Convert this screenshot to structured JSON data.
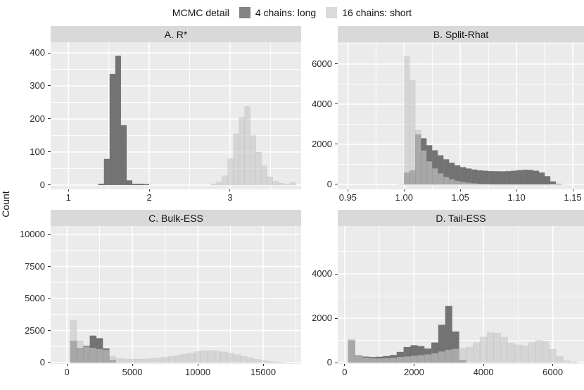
{
  "legend": {
    "title": "MCMC detail",
    "items": [
      {
        "label": "4 chains: long",
        "color": "#848484"
      },
      {
        "label": "16 chains: short",
        "color": "#DADADA"
      }
    ],
    "position": "top"
  },
  "axis": {
    "y_label": "Count"
  },
  "colors": {
    "panel_bg": "#EBEBEB",
    "grid": "#FFFFFF",
    "strip_bg": "#D9D9D9",
    "dark_fill": "#737373",
    "light_fill": "#C8C8C8",
    "light_opacity": 0.63,
    "tick_mark": "#333333",
    "tick_text": "#2b2b2b"
  },
  "chart_data": [
    {
      "id": "A",
      "type": "bar",
      "subtype": "overlaid-histograms",
      "title": "A. R*",
      "xlabel": "",
      "ylabel": "Count",
      "grid": true,
      "x_range": [
        0.78,
        3.88
      ],
      "y_range": [
        -13,
        432
      ],
      "x_tick_values": [
        1,
        2,
        3
      ],
      "x_tick_labels": [
        "1",
        "2",
        "3"
      ],
      "x_minor": [
        1.5,
        2.5,
        3.5
      ],
      "y_tick_values": [
        0,
        100,
        200,
        300,
        400
      ],
      "y_tick_labels": [
        "0",
        "100",
        "200",
        "300",
        "400"
      ],
      "y_minor": [
        50,
        150,
        250,
        350
      ],
      "series": [
        {
          "name": "4 chains: long",
          "key": "dark",
          "bin_start": 1.37,
          "bin_width": 0.07,
          "counts": [
            4,
            79,
            336,
            391,
            181,
            14,
            4,
            4,
            3
          ]
        },
        {
          "name": "16 chains: short",
          "key": "light",
          "bin_start": 2.76,
          "bin_width": 0.07,
          "counts": [
            4,
            10,
            28,
            80,
            155,
            205,
            238,
            150,
            100,
            58,
            25,
            12,
            6,
            3,
            8
          ]
        }
      ]
    },
    {
      "id": "B",
      "type": "bar",
      "subtype": "overlaid-histograms",
      "title": "B. Split-Rhat",
      "xlabel": "",
      "ylabel": "Count",
      "grid": true,
      "x_range": [
        0.941,
        1.16
      ],
      "y_range": [
        -246,
        7087
      ],
      "x_tick_values": [
        0.95,
        1.0,
        1.05,
        1.1,
        1.15
      ],
      "x_tick_labels": [
        "0.95",
        "1.00",
        "1.05",
        "1.10",
        "1.15"
      ],
      "x_minor": [
        0.975,
        1.025,
        1.075,
        1.125
      ],
      "y_tick_values": [
        0,
        2000,
        4000,
        6000
      ],
      "y_tick_labels": [
        "0",
        "2000",
        "4000",
        "6000"
      ],
      "y_minor": [
        1000,
        3000,
        5000,
        7000
      ],
      "series": [
        {
          "name": "4 chains: long",
          "key": "dark",
          "bin_start": 1.0,
          "bin_width": 0.005,
          "counts": [
            600,
            700,
            2500,
            2300,
            1950,
            1700,
            1450,
            1250,
            1080,
            950,
            860,
            790,
            740,
            700,
            680,
            660,
            655,
            650,
            660,
            680,
            710,
            730,
            720,
            680,
            590,
            410,
            150,
            30
          ]
        },
        {
          "name": "16 chains: short",
          "key": "light",
          "bin_start": 0.995,
          "bin_width": 0.005,
          "counts": [
            30,
            6400,
            5200,
            2700,
            1700,
            1150,
            800,
            550,
            380,
            260,
            180,
            130,
            90,
            60,
            40,
            28,
            18,
            12,
            8,
            6,
            4,
            3,
            2,
            2,
            1,
            1,
            1,
            30,
            20,
            8
          ]
        }
      ]
    },
    {
      "id": "C",
      "type": "bar",
      "subtype": "overlaid-histograms",
      "title": "C. Bulk-ESS",
      "xlabel": "",
      "ylabel": "Count",
      "grid": true,
      "x_range": [
        -1240,
        17900
      ],
      "y_range": [
        -110,
        10660
      ],
      "x_tick_values": [
        0,
        5000,
        10000,
        15000
      ],
      "x_tick_labels": [
        "0",
        "5000",
        "10000",
        "15000"
      ],
      "x_minor": [
        2500,
        7500,
        12500,
        17500
      ],
      "y_tick_values": [
        0,
        2500,
        5000,
        7500,
        10000
      ],
      "y_tick_labels": [
        "0",
        "2500",
        "5000",
        "7500",
        "10000"
      ],
      "y_minor": [
        1250,
        3750,
        6250,
        8750
      ],
      "series": [
        {
          "name": "4 chains: long",
          "key": "dark",
          "bin_start": 250,
          "bin_width": 500,
          "counts": [
            1700,
            1150,
            1300,
            2100,
            1900,
            1100,
            200
          ]
        },
        {
          "name": "16 chains: short",
          "key": "light",
          "bin_start": 250,
          "bin_width": 500,
          "counts": [
            3300,
            1700,
            1250,
            1150,
            1050,
            1000,
            500,
            320,
            290,
            270,
            270,
            290,
            320,
            360,
            420,
            490,
            570,
            660,
            760,
            860,
            920,
            940,
            900,
            830,
            730,
            620,
            490,
            370,
            260,
            170,
            100,
            55,
            25
          ]
        }
      ]
    },
    {
      "id": "D",
      "type": "bar",
      "subtype": "overlaid-histograms",
      "title": "D. Tail-ESS",
      "xlabel": "",
      "ylabel": "Count",
      "grid": true,
      "x_range": [
        -200,
        6900
      ],
      "y_range": [
        -63,
        6160
      ],
      "x_tick_values": [
        0,
        2000,
        4000,
        6000
      ],
      "x_tick_labels": [
        "0",
        "2000",
        "4000",
        "6000"
      ],
      "x_minor": [
        1000,
        3000,
        5000
      ],
      "y_tick_values": [
        0,
        2000,
        4000
      ],
      "y_tick_labels": [
        "0",
        "2000",
        "4000"
      ],
      "y_minor": [
        1000,
        3000,
        5000
      ],
      "series": [
        {
          "name": "4 chains: long",
          "key": "dark",
          "bin_start": 100,
          "bin_width": 200,
          "counts": [
            1000,
            320,
            270,
            250,
            260,
            290,
            340,
            480,
            700,
            780,
            740,
            630,
            900,
            1700,
            2550,
            1400,
            120
          ]
        },
        {
          "name": "16 chains: short",
          "key": "light",
          "bin_start": 100,
          "bin_width": 200,
          "counts": [
            1050,
            300,
            230,
            200,
            190,
            200,
            220,
            250,
            280,
            310,
            340,
            370,
            420,
            500,
            580,
            620,
            640,
            700,
            900,
            1150,
            1350,
            1330,
            1150,
            880,
            800,
            760,
            900,
            1000,
            950,
            600,
            280,
            80,
            30
          ]
        }
      ]
    }
  ]
}
